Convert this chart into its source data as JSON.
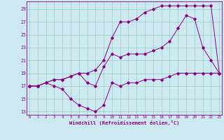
{
  "title": "",
  "xlabel": "Windchill (Refroidissement éolien,°C)",
  "bg_color": "#cce8f0",
  "line_color": "#880088",
  "grid_color": "#99ccbb",
  "yticks": [
    13,
    15,
    17,
    19,
    21,
    23,
    25,
    27,
    29
  ],
  "xticks": [
    0,
    1,
    2,
    3,
    4,
    5,
    6,
    7,
    8,
    9,
    10,
    11,
    12,
    13,
    14,
    15,
    16,
    17,
    18,
    19,
    20,
    21,
    22,
    23
  ],
  "series1_x": [
    0,
    1,
    2,
    3,
    4,
    5,
    6,
    7,
    8,
    9,
    10,
    11,
    12,
    13,
    14,
    15,
    16,
    17,
    18,
    19,
    20,
    21,
    22,
    23
  ],
  "series1_y": [
    17,
    17,
    17.5,
    17,
    16.5,
    15,
    14,
    13.5,
    13,
    14,
    17.5,
    17,
    17.5,
    17.5,
    18,
    18,
    18,
    18.5,
    19,
    19,
    19,
    19,
    19,
    19
  ],
  "series2_x": [
    0,
    1,
    2,
    3,
    4,
    5,
    6,
    7,
    8,
    9,
    10,
    11,
    12,
    13,
    14,
    15,
    16,
    17,
    18,
    19,
    20,
    21,
    22,
    23
  ],
  "series2_y": [
    17,
    17,
    17.5,
    18,
    18,
    18.5,
    19,
    17.5,
    17,
    20,
    22,
    21.5,
    22,
    22,
    22,
    22.5,
    23,
    24,
    26,
    28,
    27.5,
    23,
    21,
    19
  ],
  "series3_x": [
    0,
    1,
    2,
    3,
    4,
    5,
    6,
    7,
    8,
    9,
    10,
    11,
    12,
    13,
    14,
    15,
    16,
    17,
    18,
    19,
    20,
    21,
    22,
    23
  ],
  "series3_y": [
    17,
    17,
    17.5,
    18,
    18,
    18.5,
    19,
    19,
    19.5,
    21,
    24.5,
    27,
    27,
    27.5,
    28.5,
    29,
    29.5,
    29.5,
    29.5,
    29.5,
    29.5,
    29.5,
    29.5,
    19
  ],
  "xlim_min": -0.3,
  "xlim_max": 23.3,
  "ylim_min": 12.5,
  "ylim_max": 30.2
}
